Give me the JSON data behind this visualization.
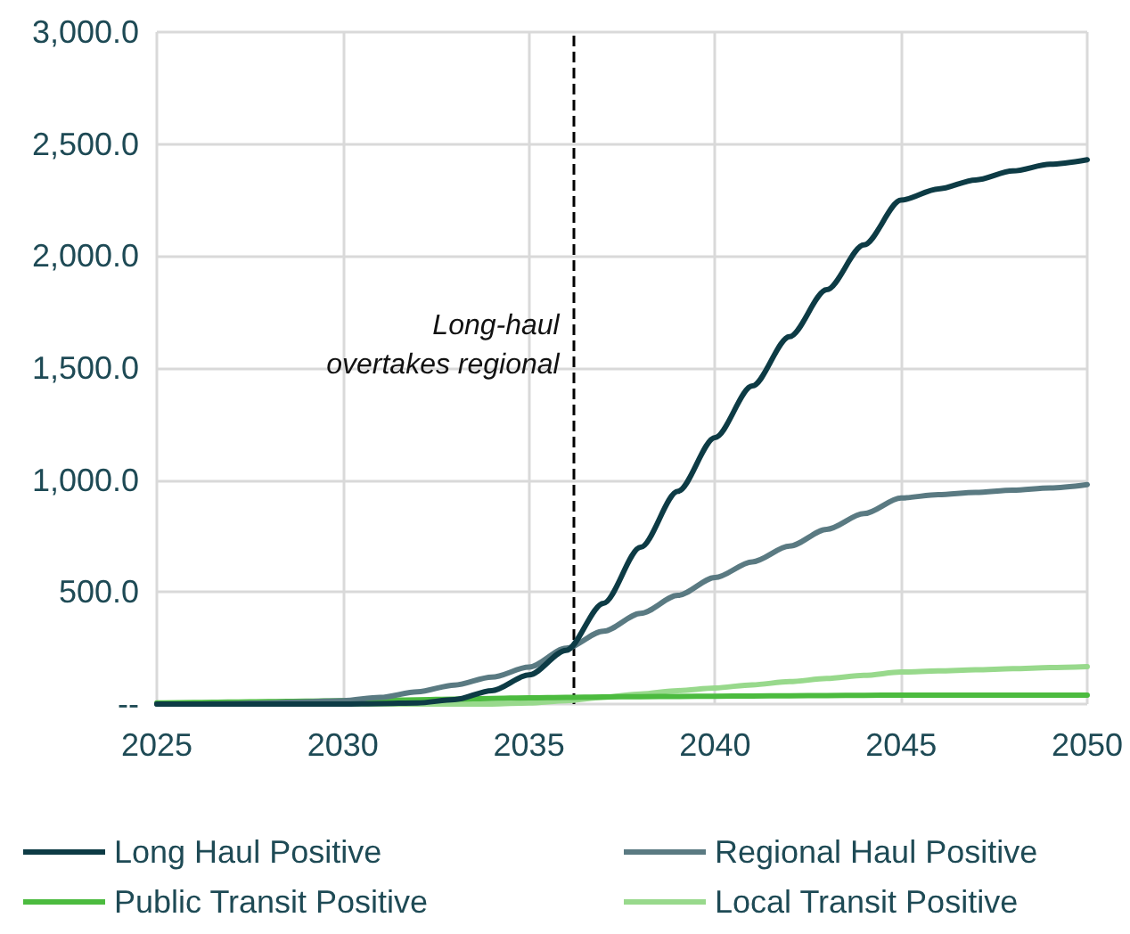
{
  "chart_data": {
    "type": "line",
    "x": [
      2025,
      2026,
      2027,
      2028,
      2029,
      2030,
      2031,
      2032,
      2033,
      2034,
      2035,
      2036,
      2037,
      2038,
      2039,
      2040,
      2041,
      2042,
      2043,
      2044,
      2045,
      2046,
      2047,
      2048,
      2049,
      2050
    ],
    "series": [
      {
        "name": "Long Haul Positive",
        "color": "#0d3b45",
        "values": [
          0,
          0,
          0,
          0,
          0,
          0,
          2,
          5,
          20,
          60,
          130,
          240,
          450,
          700,
          950,
          1190,
          1420,
          1640,
          1850,
          2050,
          2250,
          2300,
          2340,
          2380,
          2410,
          2430
        ]
      },
      {
        "name": "Regional Haul Positive",
        "color": "#5a7a82",
        "values": [
          0,
          0,
          2,
          5,
          10,
          15,
          30,
          55,
          85,
          120,
          165,
          250,
          325,
          405,
          485,
          565,
          635,
          705,
          780,
          850,
          920,
          935,
          945,
          955,
          965,
          980
        ]
      },
      {
        "name": "Public Transit Positive",
        "color": "#4cbb3f",
        "values": [
          5,
          7,
          9,
          11,
          13,
          15,
          17,
          19,
          22,
          25,
          28,
          30,
          32,
          33,
          34,
          35,
          36,
          37,
          38,
          39,
          40,
          40,
          40,
          40,
          40,
          40
        ]
      },
      {
        "name": "Local Transit Positive",
        "color": "#98d98c",
        "values": [
          0,
          0,
          0,
          0,
          0,
          0,
          0,
          0,
          0,
          0,
          5,
          15,
          30,
          45,
          60,
          72,
          86,
          100,
          114,
          128,
          143,
          148,
          153,
          158,
          163,
          167
        ]
      }
    ],
    "xlim": [
      2025,
      2050
    ],
    "xticks": [
      2025,
      2030,
      2035,
      2040,
      2045,
      2050
    ],
    "ylim": [
      0,
      3000
    ],
    "yticks": [
      {
        "value": 0,
        "label": "--"
      },
      {
        "value": 500,
        "label": "500.0"
      },
      {
        "value": 1000,
        "label": "1,000.0"
      },
      {
        "value": 1500,
        "label": "1,500.0"
      },
      {
        "value": 2000,
        "label": "2,000.0"
      },
      {
        "value": 2500,
        "label": "2,500.0"
      },
      {
        "value": 3000,
        "label": "3,000.0"
      }
    ],
    "grid": true,
    "legend": "bottom",
    "ref_lines": [
      {
        "axis": "x",
        "value": 2036.2,
        "label": "Long-haul\novertakes regional",
        "color": "#000000",
        "line_style": "dashed"
      }
    ]
  }
}
